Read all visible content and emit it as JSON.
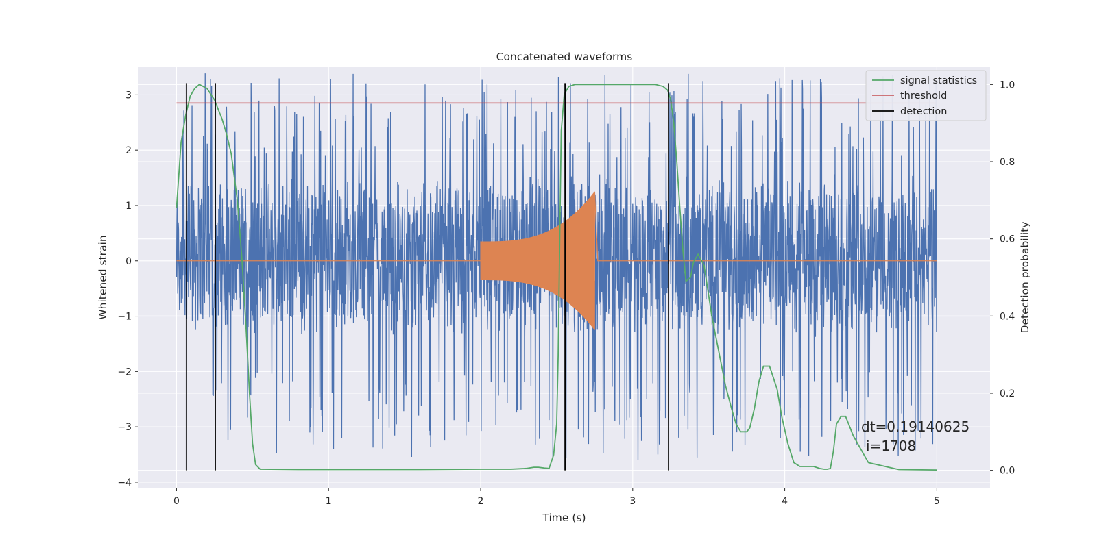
{
  "chart_data": {
    "type": "line",
    "title": "Concatenated waveforms",
    "xlabel": "Time (s)",
    "ylabel_left": "Whitened strain",
    "ylabel_right": "Detection probability",
    "xlim": [
      -0.25,
      5.35
    ],
    "ylim_left": [
      -4.1,
      3.5
    ],
    "ylim_right": [
      -0.045,
      1.045
    ],
    "xticks": [
      0,
      1,
      2,
      3,
      4,
      5
    ],
    "yticks_left": [
      -4,
      -3,
      -2,
      -1,
      0,
      1,
      2,
      3
    ],
    "yticks_right": [
      0.0,
      0.2,
      0.4,
      0.6,
      0.8,
      1.0
    ],
    "grid": true,
    "legend_position": "top-right",
    "colors": {
      "strain": "#4c72b0",
      "waveform": "#dd8452",
      "signal_statistics": "#55a868",
      "threshold": "#c44e52",
      "detection": "#000000",
      "plot_bg": "#eaeaf2",
      "grid": "#ffffff"
    },
    "series": [
      {
        "name": "signal statistics",
        "axis": "right",
        "x": [
          0,
          0.03,
          0.06,
          0.09,
          0.12,
          0.15,
          0.2,
          0.25,
          0.28,
          0.3,
          0.33,
          0.36,
          0.4,
          0.43,
          0.46,
          0.48,
          0.5,
          0.52,
          0.55,
          0.8,
          1.2,
          1.6,
          2.0,
          2.2,
          2.3,
          2.35,
          2.38,
          2.42,
          2.45,
          2.48,
          2.5,
          2.51,
          2.52,
          2.53,
          2.55,
          2.58,
          2.62,
          2.7,
          3.0,
          3.15,
          3.2,
          3.23,
          3.25,
          3.27,
          3.29,
          3.31,
          3.33,
          3.35,
          3.38,
          3.4,
          3.43,
          3.47,
          3.52,
          3.57,
          3.61,
          3.65,
          3.68,
          3.71,
          3.73,
          3.75,
          3.77,
          3.8,
          3.83,
          3.86,
          3.9,
          3.95,
          3.98,
          4.02,
          4.06,
          4.1,
          4.15,
          4.19,
          4.23,
          4.26,
          4.28,
          4.3,
          4.32,
          4.34,
          4.37,
          4.4,
          4.45,
          4.55,
          4.75,
          5.0
        ],
        "y": [
          0.68,
          0.85,
          0.92,
          0.97,
          0.99,
          1.0,
          0.99,
          0.96,
          0.93,
          0.91,
          0.87,
          0.82,
          0.7,
          0.55,
          0.35,
          0.2,
          0.07,
          0.015,
          0.003,
          0.002,
          0.002,
          0.002,
          0.003,
          0.003,
          0.005,
          0.008,
          0.008,
          0.006,
          0.005,
          0.04,
          0.12,
          0.3,
          0.6,
          0.88,
          0.975,
          0.995,
          1.0,
          1.0,
          1.0,
          1.0,
          0.995,
          0.985,
          0.96,
          0.9,
          0.8,
          0.68,
          0.57,
          0.49,
          0.5,
          0.54,
          0.56,
          0.53,
          0.4,
          0.3,
          0.22,
          0.16,
          0.12,
          0.1,
          0.1,
          0.1,
          0.11,
          0.16,
          0.23,
          0.27,
          0.27,
          0.21,
          0.14,
          0.07,
          0.02,
          0.01,
          0.01,
          0.01,
          0.005,
          0.003,
          0.003,
          0.005,
          0.05,
          0.12,
          0.14,
          0.14,
          0.09,
          0.02,
          0.002,
          0.001
        ]
      },
      {
        "name": "threshold",
        "axis": "right",
        "x": [
          0,
          5.0
        ],
        "y": [
          0.952,
          0.952
        ]
      },
      {
        "name": "detection",
        "axis": "right",
        "x": [
          0.065,
          0.255,
          2.555,
          3.235
        ],
        "y_range": [
          0,
          1.0
        ]
      }
    ],
    "strain": {
      "axis": "left",
      "x_range": [
        0,
        5.0
      ],
      "typical_envelope": [
        -1.1,
        1.3
      ],
      "spike_range": [
        -3.6,
        3.4
      ]
    },
    "injected_waveform": {
      "axis": "left",
      "x_range": [
        0,
        5.0
      ],
      "chirp_start": 2.0,
      "chirp_end": 2.75,
      "amplitude_start": 0.35,
      "amplitude_end": 1.25
    },
    "annotations": [
      "dt=0.19140625",
      "i=1708"
    ]
  }
}
